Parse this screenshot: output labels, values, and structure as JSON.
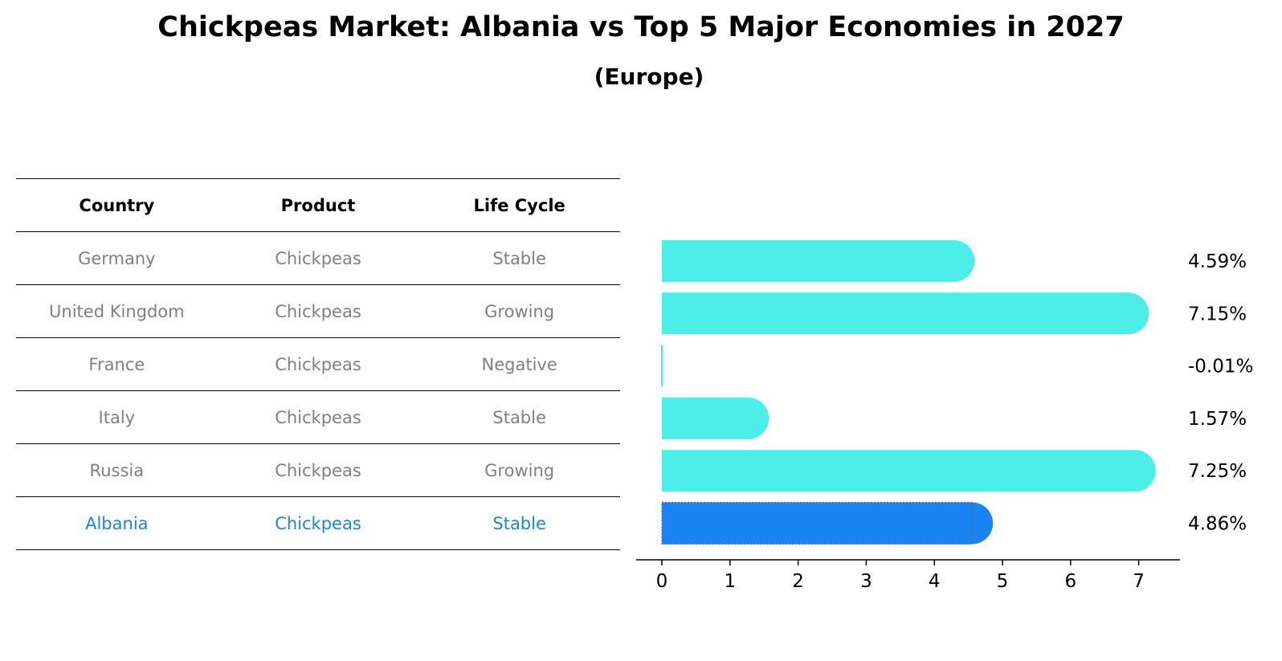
{
  "title": "Chickpeas Market: Albania vs Top 5 Major Economies in 2027",
  "subtitle": "(Europe)",
  "table": {
    "headers": [
      "Country",
      "Product",
      "Life Cycle"
    ],
    "rows": [
      {
        "country": "Germany",
        "product": "Chickpeas",
        "life_cycle": "Stable"
      },
      {
        "country": "United Kingdom",
        "product": "Chickpeas",
        "life_cycle": "Growing"
      },
      {
        "country": "France",
        "product": "Chickpeas",
        "life_cycle": "Negative"
      },
      {
        "country": "Italy",
        "product": "Chickpeas",
        "life_cycle": "Stable"
      },
      {
        "country": "Russia",
        "product": "Chickpeas",
        "life_cycle": "Growing"
      },
      {
        "country": "Albania",
        "product": "Chickpeas",
        "life_cycle": "Stable"
      }
    ]
  },
  "chart_data": {
    "type": "bar",
    "orientation": "horizontal",
    "categories": [
      "Germany",
      "United Kingdom",
      "France",
      "Italy",
      "Russia",
      "Albania"
    ],
    "values": [
      4.59,
      7.15,
      -0.01,
      1.57,
      7.25,
      4.86
    ],
    "value_labels": [
      "4.59%",
      "7.15%",
      "-0.01%",
      "1.57%",
      "7.25%",
      "4.86%"
    ],
    "xlim": [
      -0.38,
      7.6
    ],
    "xticks": [
      "0",
      "1",
      "2",
      "3",
      "4",
      "5",
      "6",
      "7"
    ],
    "xlabel": "",
    "ylabel": "",
    "grid": false,
    "colors": {
      "default": "#4deeea",
      "highlight": "#1a83f2"
    },
    "highlight_index": 5
  }
}
